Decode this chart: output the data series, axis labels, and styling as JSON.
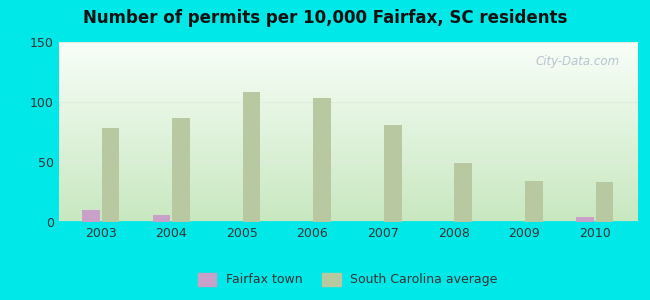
{
  "title": "Number of permits per 10,000 Fairfax, SC residents",
  "years": [
    2003,
    2004,
    2005,
    2006,
    2007,
    2008,
    2009,
    2010
  ],
  "fairfax_values": [
    10,
    6,
    0,
    0,
    0,
    0,
    0,
    4
  ],
  "sc_avg_values": [
    78,
    87,
    108,
    103,
    81,
    49,
    34,
    33
  ],
  "fairfax_color": "#c8a0c8",
  "sc_avg_color": "#b8c8a0",
  "outer_bg": "#00e8e8",
  "plot_bg_bottom": "#c8e8c0",
  "plot_bg_top": "#f0f8f0",
  "ylim": [
    0,
    150
  ],
  "yticks": [
    0,
    50,
    100,
    150
  ],
  "bar_width": 0.25,
  "legend_fairfax": "Fairfax town",
  "legend_sc": "South Carolina average",
  "watermark": "City-Data.com",
  "grid_color": "#e0ece0",
  "tick_color": "#888888",
  "title_fontsize": 12
}
